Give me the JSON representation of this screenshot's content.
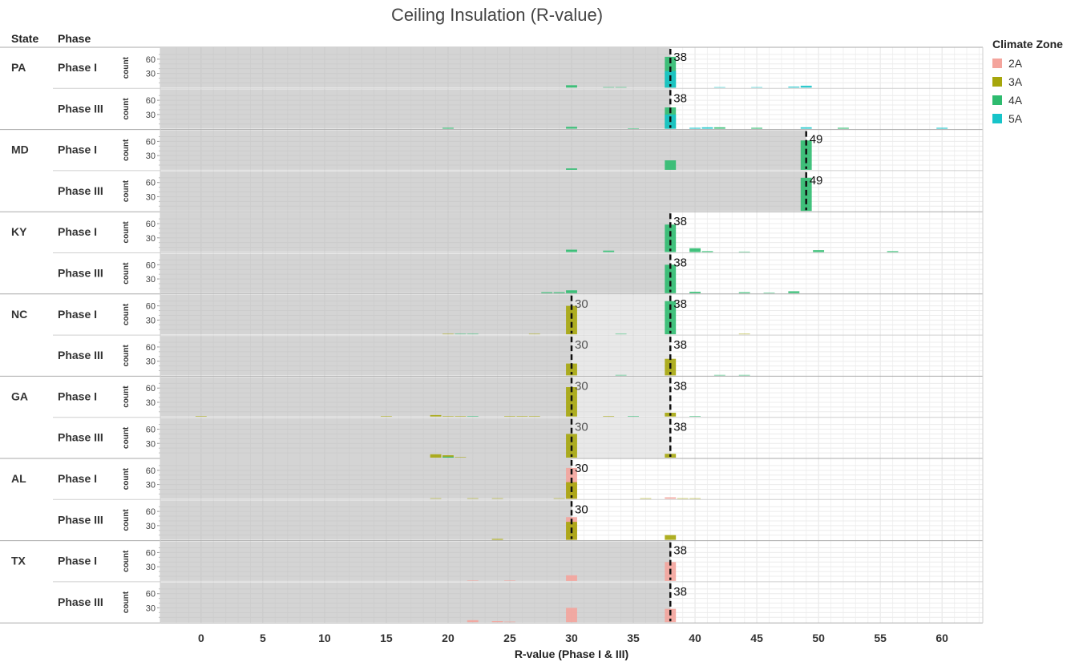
{
  "chart_data": {
    "type": "bar",
    "title": "Ceiling Insulation (R-value)",
    "xlabel": "R-value (Phase I & III)",
    "ylabel": "count",
    "xlim": [
      -3.3,
      63.3
    ],
    "ylim": [
      0,
      80
    ],
    "x_ticks": [
      0,
      5,
      10,
      15,
      20,
      25,
      30,
      35,
      40,
      45,
      50,
      55,
      60
    ],
    "y_ticks": [
      30,
      60
    ],
    "column_headers": {
      "state": "State",
      "phase": "Phase"
    },
    "legend": {
      "title": "Climate Zone",
      "placement": "right",
      "items": [
        {
          "name": "2A",
          "color": "#f4a49c"
        },
        {
          "name": "3A",
          "color": "#a6a60b"
        },
        {
          "name": "4A",
          "color": "#2ebb6f"
        },
        {
          "name": "5A",
          "color": "#17c4c9"
        }
      ]
    },
    "states": [
      {
        "name": "PA",
        "panels": [
          {
            "phase": "Phase I",
            "code_lines": [
              38
            ],
            "bars": [
              [
                30,
                5,
                "4A"
              ],
              [
                33,
                1,
                "4A"
              ],
              [
                34,
                1,
                "4A"
              ],
              [
                38,
                65,
                "4A"
              ],
              [
                38,
                35,
                "5A"
              ],
              [
                42,
                1,
                "5A"
              ],
              [
                45,
                1,
                "5A"
              ],
              [
                48,
                2,
                "5A"
              ],
              [
                49,
                4,
                "5A"
              ]
            ]
          },
          {
            "phase": "Phase III",
            "code_lines": [
              38
            ],
            "bars": [
              [
                20,
                2,
                "4A"
              ],
              [
                30,
                4,
                "4A"
              ],
              [
                35,
                1,
                "4A"
              ],
              [
                38,
                45,
                "4A"
              ],
              [
                38,
                30,
                "5A"
              ],
              [
                40,
                2,
                "5A"
              ],
              [
                41,
                3,
                "5A"
              ],
              [
                42,
                3,
                "4A"
              ],
              [
                45,
                2,
                "4A"
              ],
              [
                49,
                3,
                "5A"
              ],
              [
                52,
                2,
                "4A"
              ],
              [
                60,
                2,
                "5A"
              ]
            ]
          }
        ]
      },
      {
        "name": "MD",
        "panels": [
          {
            "phase": "Phase I",
            "code_lines": [
              49
            ],
            "bars": [
              [
                30,
                3,
                "4A"
              ],
              [
                38,
                20,
                "4A"
              ],
              [
                49,
                62,
                "4A"
              ]
            ]
          },
          {
            "phase": "Phase III",
            "code_lines": [
              49
            ],
            "bars": [
              [
                49,
                70,
                "4A"
              ]
            ]
          }
        ]
      },
      {
        "name": "KY",
        "panels": [
          {
            "phase": "Phase I",
            "code_lines": [
              38
            ],
            "bars": [
              [
                30,
                5,
                "4A"
              ],
              [
                33,
                3,
                "4A"
              ],
              [
                38,
                58,
                "4A"
              ],
              [
                40,
                8,
                "4A"
              ],
              [
                41,
                2,
                "4A"
              ],
              [
                44,
                1,
                "4A"
              ],
              [
                50,
                4,
                "4A"
              ],
              [
                56,
                2,
                "4A"
              ]
            ]
          },
          {
            "phase": "Phase III",
            "code_lines": [
              38
            ],
            "bars": [
              [
                28,
                2,
                "4A"
              ],
              [
                29,
                2,
                "4A"
              ],
              [
                30,
                6,
                "4A"
              ],
              [
                38,
                60,
                "4A"
              ],
              [
                40,
                3,
                "4A"
              ],
              [
                44,
                2,
                "4A"
              ],
              [
                46,
                1,
                "4A"
              ],
              [
                48,
                4,
                "4A"
              ]
            ]
          }
        ]
      },
      {
        "name": "NC",
        "panels": [
          {
            "phase": "Phase I",
            "code_lines": [
              30,
              38
            ],
            "bars": [
              [
                20,
                1,
                "3A"
              ],
              [
                21,
                1,
                "4A"
              ],
              [
                22,
                1,
                "4A"
              ],
              [
                27,
                1,
                "3A"
              ],
              [
                30,
                60,
                "3A"
              ],
              [
                34,
                1,
                "4A"
              ],
              [
                38,
                70,
                "4A"
              ],
              [
                44,
                1,
                "3A"
              ]
            ]
          },
          {
            "phase": "Phase III",
            "code_lines": [
              30,
              38
            ],
            "bars": [
              [
                30,
                25,
                "3A"
              ],
              [
                34,
                1,
                "4A"
              ],
              [
                38,
                35,
                "3A"
              ],
              [
                42,
                1,
                "4A"
              ],
              [
                44,
                1,
                "4A"
              ]
            ]
          }
        ]
      },
      {
        "name": "GA",
        "panels": [
          {
            "phase": "Phase I",
            "code_lines": [
              30,
              38
            ],
            "bars": [
              [
                0,
                1,
                "3A"
              ],
              [
                15,
                1,
                "3A"
              ],
              [
                19,
                3,
                "3A"
              ],
              [
                20,
                1,
                "3A"
              ],
              [
                21,
                1,
                "3A"
              ],
              [
                22,
                1,
                "4A"
              ],
              [
                25,
                1,
                "3A"
              ],
              [
                26,
                1,
                "3A"
              ],
              [
                27,
                1,
                "3A"
              ],
              [
                30,
                62,
                "3A"
              ],
              [
                33,
                1,
                "3A"
              ],
              [
                35,
                1,
                "4A"
              ],
              [
                38,
                8,
                "3A"
              ],
              [
                40,
                1,
                "4A"
              ]
            ]
          },
          {
            "phase": "Phase III",
            "code_lines": [
              30,
              38
            ],
            "bars": [
              [
                19,
                7,
                "3A"
              ],
              [
                20,
                5,
                "3A"
              ],
              [
                20,
                2,
                "4A"
              ],
              [
                21,
                1,
                "3A"
              ],
              [
                30,
                50,
                "3A"
              ],
              [
                38,
                8,
                "3A"
              ]
            ]
          }
        ]
      },
      {
        "name": "AL",
        "panels": [
          {
            "phase": "Phase I",
            "code_lines": [
              30
            ],
            "bars": [
              [
                19,
                1,
                "3A"
              ],
              [
                22,
                1,
                "3A"
              ],
              [
                24,
                1,
                "3A"
              ],
              [
                29,
                1,
                "3A"
              ],
              [
                30,
                65,
                "2A"
              ],
              [
                30,
                35,
                "3A"
              ],
              [
                36,
                1,
                "3A"
              ],
              [
                38,
                3,
                "2A"
              ],
              [
                39,
                1,
                "3A"
              ],
              [
                40,
                1,
                "3A"
              ]
            ]
          },
          {
            "phase": "Phase III",
            "code_lines": [
              30
            ],
            "bars": [
              [
                24,
                2,
                "3A"
              ],
              [
                30,
                48,
                "2A"
              ],
              [
                30,
                38,
                "3A"
              ],
              [
                38,
                10,
                "3A"
              ]
            ]
          }
        ]
      },
      {
        "name": "TX",
        "panels": [
          {
            "phase": "Phase I",
            "code_lines": [
              38
            ],
            "bars": [
              [
                22,
                1,
                "2A"
              ],
              [
                25,
                1,
                "2A"
              ],
              [
                30,
                12,
                "2A"
              ],
              [
                38,
                40,
                "2A"
              ]
            ]
          },
          {
            "phase": "Phase III",
            "code_lines": [
              38
            ],
            "bars": [
              [
                22,
                4,
                "2A"
              ],
              [
                24,
                2,
                "2A"
              ],
              [
                25,
                1,
                "2A"
              ],
              [
                30,
                30,
                "2A"
              ],
              [
                38,
                28,
                "2A"
              ]
            ]
          }
        ]
      }
    ]
  }
}
